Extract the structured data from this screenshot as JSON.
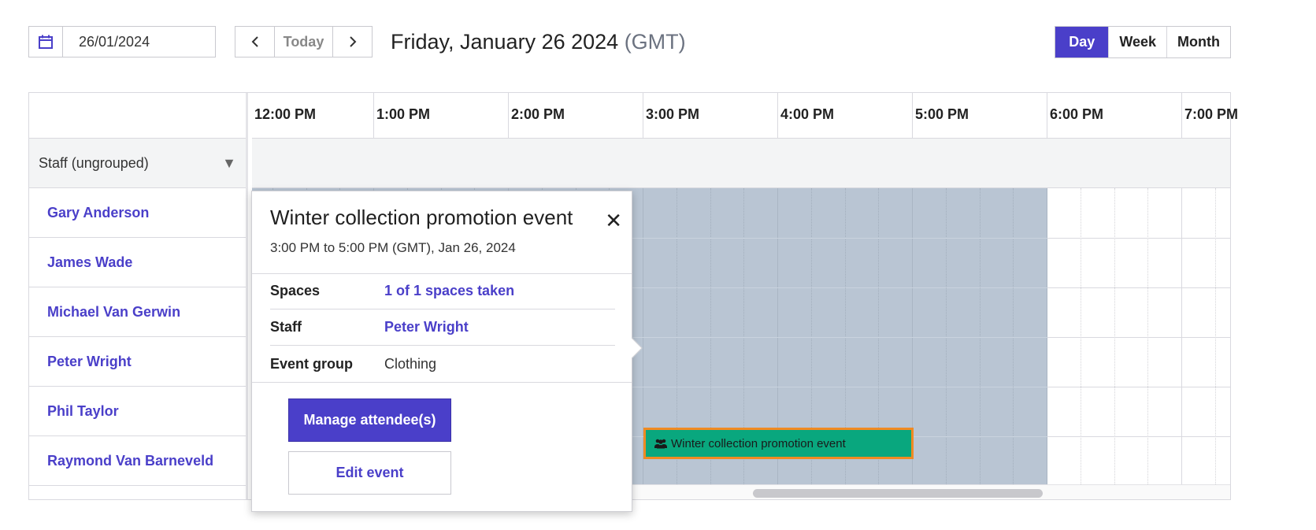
{
  "toolbar": {
    "date_value": "26/01/2024",
    "calendar_icon": "calendar-icon",
    "prev_icon": "chevron-left-icon",
    "next_icon": "chevron-right-icon",
    "today_label": "Today",
    "title": "Friday, January 26 2024",
    "timezone": "(GMT)",
    "views": [
      "Day",
      "Week",
      "Month"
    ],
    "active_view": "Day"
  },
  "timeline": {
    "hours": [
      "12:00 PM",
      "1:00 PM",
      "2:00 PM",
      "3:00 PM",
      "4:00 PM",
      "5:00 PM",
      "6:00 PM",
      "7:00 PM"
    ]
  },
  "resources": {
    "group_label": "Staff (ungrouped)",
    "group_toggle_icon": "triangle-down-icon",
    "staff": [
      "Gary Anderson",
      "James Wade",
      "Michael Van Gerwin",
      "Peter Wright",
      "Phil Taylor",
      "Raymond Van Barneveld"
    ]
  },
  "event_block": {
    "label": "Winter collection promotion event",
    "icon": "users-icon",
    "color": "#09a77e",
    "selected_border": "#f08a22"
  },
  "popup": {
    "title": "Winter collection promotion event",
    "time": "3:00 PM to 5:00 PM (GMT), Jan 26, 2024",
    "close_icon": "close-icon",
    "rows": [
      {
        "label": "Spaces",
        "value": "1 of 1 spaces taken"
      },
      {
        "label": "Staff",
        "value": "Peter Wright"
      },
      {
        "label": "Event group",
        "value": "Clothing"
      }
    ],
    "primary_button": "Manage attendee(s)",
    "secondary_button": "Edit event"
  },
  "colors": {
    "accent": "#4a3fc9",
    "unavailable_shade": "#b9c5d3"
  }
}
